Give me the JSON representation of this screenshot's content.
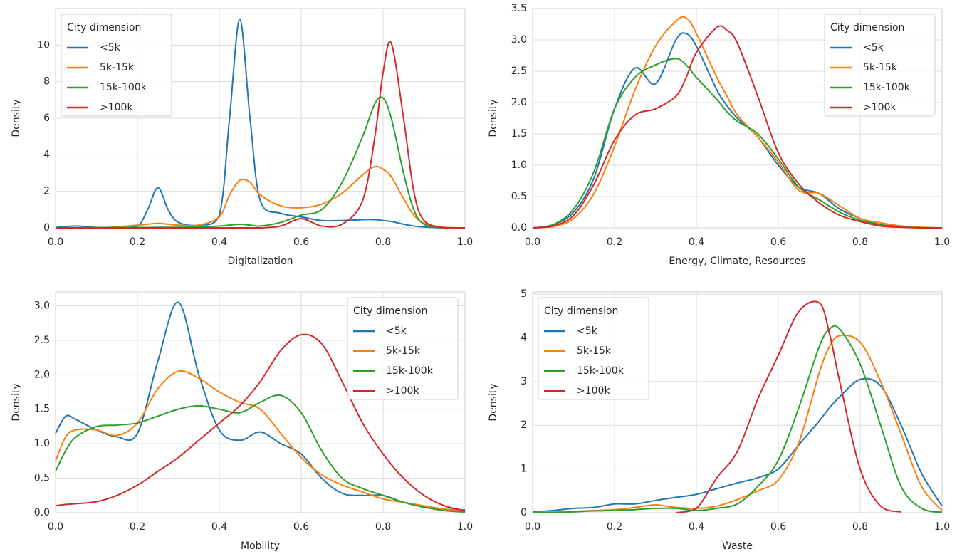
{
  "chart_data": [
    {
      "type": "line",
      "xlabel": "Digitalization",
      "ylabel": "Density",
      "x": [
        0,
        0.05,
        0.1,
        0.15,
        0.2,
        0.225,
        0.25,
        0.275,
        0.3,
        0.35,
        0.4,
        0.425,
        0.45,
        0.475,
        0.5,
        0.55,
        0.6,
        0.65,
        0.7,
        0.75,
        0.78,
        0.8,
        0.82,
        0.85,
        0.875,
        0.9,
        0.95,
        1.0
      ],
      "series": [
        {
          "name": "<5k",
          "color": "#1f77b4",
          "values": [
            0.02,
            0.1,
            0.02,
            0,
            0.1,
            1.0,
            2.2,
            1.0,
            0.3,
            0.15,
            0.7,
            6,
            11.4,
            6,
            1.5,
            0.8,
            0.6,
            0.4,
            0.4,
            0.45,
            0.45,
            0.4,
            0.35,
            0.2,
            0.1,
            0.05,
            0,
            0
          ]
        },
        {
          "name": "5k-15k",
          "color": "#ff7f0e",
          "values": [
            0,
            0,
            0,
            0.05,
            0.15,
            0.2,
            0.25,
            0.2,
            0.15,
            0.15,
            0.6,
            1.8,
            2.6,
            2.5,
            1.8,
            1.2,
            1.1,
            1.3,
            1.9,
            2.9,
            3.35,
            3.2,
            2.8,
            1.6,
            0.7,
            0.25,
            0.03,
            0
          ]
        },
        {
          "name": "15k-100k",
          "color": "#2ca02c",
          "values": [
            0,
            0,
            0.02,
            0.02,
            0.02,
            0.02,
            0.03,
            0.03,
            0.03,
            0.05,
            0.1,
            0.15,
            0.2,
            0.15,
            0.1,
            0.3,
            0.7,
            1.0,
            2.5,
            5.0,
            6.8,
            7.1,
            6.0,
            3.0,
            1.0,
            0.2,
            0,
            0
          ]
        },
        {
          "name": ">100k",
          "color": "#d62728",
          "values": [
            0,
            0,
            0,
            0,
            0,
            0,
            0,
            0,
            0,
            0,
            0,
            0,
            0,
            0,
            0,
            0.1,
            0.5,
            0.1,
            0.2,
            1.5,
            5,
            8.5,
            10.1,
            6,
            2,
            0.4,
            0,
            0
          ]
        }
      ],
      "xlim": [
        0,
        1
      ],
      "ylim": [
        0,
        12
      ],
      "xticks": [
        {
          "value": 0,
          "label": "0.0"
        },
        {
          "value": 0.2,
          "label": "0.2"
        },
        {
          "value": 0.4,
          "label": "0.4"
        },
        {
          "value": 0.6,
          "label": "0.6"
        },
        {
          "value": 0.8,
          "label": "0.8"
        },
        {
          "value": 1,
          "label": "1.0"
        }
      ],
      "yticks": [
        0,
        2,
        4,
        6,
        8,
        10
      ],
      "grid": true,
      "legend": {
        "title": "City dimension",
        "loc": "upper left"
      }
    },
    {
      "type": "line",
      "xlabel": "Energy, Climate, Resources",
      "ylabel": "Density",
      "x": [
        0,
        0.05,
        0.1,
        0.15,
        0.2,
        0.25,
        0.3,
        0.35,
        0.375,
        0.4,
        0.45,
        0.475,
        0.5,
        0.55,
        0.6,
        0.65,
        0.7,
        0.75,
        0.8,
        0.85,
        0.9,
        0.95,
        1.0
      ],
      "series": [
        {
          "name": "<5k",
          "color": "#1f77b4",
          "values": [
            0,
            0.05,
            0.25,
            0.8,
            1.9,
            2.55,
            2.3,
            3.0,
            3.1,
            2.9,
            2.2,
            1.95,
            1.75,
            1.45,
            1.0,
            0.65,
            0.55,
            0.3,
            0.15,
            0.05,
            0.02,
            0,
            0
          ]
        },
        {
          "name": "5k-15k",
          "color": "#ff7f0e",
          "values": [
            0,
            0.02,
            0.15,
            0.55,
            1.3,
            2.2,
            2.9,
            3.3,
            3.35,
            3.1,
            2.4,
            2.1,
            1.8,
            1.45,
            1.05,
            0.6,
            0.55,
            0.35,
            0.15,
            0.08,
            0.03,
            0.01,
            0
          ]
        },
        {
          "name": "15k-100k",
          "color": "#2ca02c",
          "values": [
            0,
            0.05,
            0.3,
            0.9,
            1.9,
            2.4,
            2.6,
            2.7,
            2.6,
            2.4,
            2.05,
            1.85,
            1.7,
            1.5,
            1.1,
            0.65,
            0.45,
            0.25,
            0.12,
            0.05,
            0.02,
            0,
            0
          ]
        },
        {
          "name": ">100k",
          "color": "#d62728",
          "values": [
            0,
            0.03,
            0.2,
            0.7,
            1.4,
            1.8,
            1.9,
            2.1,
            2.4,
            2.8,
            3.2,
            3.15,
            2.95,
            2.1,
            1.2,
            0.7,
            0.4,
            0.2,
            0.1,
            0.03,
            0.01,
            0,
            0
          ]
        }
      ],
      "xlim": [
        0,
        1
      ],
      "ylim": [
        0,
        3.5
      ],
      "xticks": [
        {
          "value": 0,
          "label": "0.0"
        },
        {
          "value": 0.2,
          "label": "0.2"
        },
        {
          "value": 0.4,
          "label": "0.4"
        },
        {
          "value": 0.6,
          "label": "0.6"
        },
        {
          "value": 0.8,
          "label": "0.8"
        },
        {
          "value": 1,
          "label": "1.0"
        }
      ],
      "yticks": [
        {
          "value": 0,
          "label": "0.0"
        },
        0.5,
        {
          "value": 1,
          "label": "1.0"
        },
        1.5,
        {
          "value": 2,
          "label": "2.0"
        },
        2.5,
        {
          "value": 3,
          "label": "3.0"
        },
        3.5
      ],
      "grid": true,
      "legend": {
        "title": "City dimension",
        "loc": "upper right"
      }
    },
    {
      "type": "line",
      "xlabel": "Mobility",
      "ylabel": "Density",
      "x": [
        0,
        0.025,
        0.05,
        0.1,
        0.15,
        0.2,
        0.25,
        0.3,
        0.35,
        0.4,
        0.45,
        0.5,
        0.55,
        0.6,
        0.65,
        0.7,
        0.75,
        0.8,
        0.85,
        0.9,
        0.95,
        1.0
      ],
      "series": [
        {
          "name": "<5k",
          "color": "#1f77b4",
          "values": [
            1.15,
            1.4,
            1.35,
            1.2,
            1.1,
            1.15,
            2.2,
            3.05,
            2.0,
            1.2,
            1.05,
            1.17,
            1.0,
            0.85,
            0.5,
            0.28,
            0.25,
            0.25,
            0.15,
            0.08,
            0.05,
            0.04
          ]
        },
        {
          "name": "5k-15k",
          "color": "#ff7f0e",
          "values": [
            0.75,
            1.1,
            1.2,
            1.2,
            1.12,
            1.3,
            1.8,
            2.05,
            1.95,
            1.75,
            1.6,
            1.5,
            1.15,
            0.8,
            0.55,
            0.4,
            0.3,
            0.2,
            0.15,
            0.1,
            0.05,
            0.02
          ]
        },
        {
          "name": "15k-100k",
          "color": "#2ca02c",
          "values": [
            0.6,
            0.9,
            1.1,
            1.25,
            1.27,
            1.3,
            1.4,
            1.5,
            1.55,
            1.5,
            1.45,
            1.6,
            1.7,
            1.45,
            0.9,
            0.5,
            0.35,
            0.25,
            0.15,
            0.08,
            0.03,
            0.01
          ]
        },
        {
          "name": ">100k",
          "color": "#d62728",
          "values": [
            0.1,
            0.12,
            0.13,
            0.16,
            0.25,
            0.4,
            0.6,
            0.8,
            1.05,
            1.3,
            1.55,
            1.9,
            2.35,
            2.58,
            2.45,
            1.9,
            1.3,
            0.85,
            0.5,
            0.25,
            0.1,
            0.03
          ]
        }
      ],
      "xlim": [
        0,
        1
      ],
      "ylim": [
        0,
        3.2
      ],
      "xticks": [
        {
          "value": 0,
          "label": "0.0"
        },
        {
          "value": 0.2,
          "label": "0.2"
        },
        {
          "value": 0.4,
          "label": "0.4"
        },
        {
          "value": 0.6,
          "label": "0.6"
        },
        {
          "value": 0.8,
          "label": "0.8"
        },
        {
          "value": 1,
          "label": "1.0"
        }
      ],
      "yticks": [
        {
          "value": 0,
          "label": "0.0"
        },
        0.5,
        {
          "value": 1,
          "label": "1.0"
        },
        1.5,
        {
          "value": 2,
          "label": "2.0"
        },
        2.5,
        {
          "value": 3,
          "label": "3.0"
        }
      ],
      "grid": true,
      "legend": {
        "title": "City dimension",
        "loc": "upper right"
      }
    },
    {
      "type": "line",
      "xlabel": "Waste",
      "ylabel": "Density",
      "x": [
        0,
        0.05,
        0.1,
        0.15,
        0.2,
        0.25,
        0.3,
        0.35,
        0.4,
        0.45,
        0.5,
        0.55,
        0.6,
        0.65,
        0.7,
        0.725,
        0.75,
        0.8,
        0.85,
        0.9,
        0.95,
        1.0
      ],
      "series": [
        {
          "name": "<5k",
          "color": "#1f77b4",
          "values": [
            0.02,
            0.05,
            0.1,
            0.12,
            0.2,
            0.2,
            0.28,
            0.35,
            0.42,
            0.55,
            0.68,
            0.8,
            1.0,
            1.55,
            2.1,
            2.4,
            2.65,
            3.05,
            2.9,
            2.0,
            0.9,
            0.15
          ]
        },
        {
          "name": "5k-15k",
          "color": "#ff7f0e",
          "values": [
            0,
            0.02,
            0.03,
            0.05,
            0.07,
            0.12,
            0.18,
            0.12,
            0.1,
            0.15,
            0.3,
            0.5,
            0.75,
            1.6,
            3.2,
            3.8,
            4.05,
            3.9,
            3.0,
            1.8,
            0.6,
            0.05
          ]
        },
        {
          "name": "15k-100k",
          "color": "#2ca02c",
          "values": [
            0,
            0,
            0.02,
            0.04,
            0.05,
            0.07,
            0.1,
            0.1,
            0.05,
            0.1,
            0.2,
            0.6,
            1.2,
            2.4,
            3.8,
            4.2,
            4.2,
            3.4,
            2.0,
            0.6,
            0.1,
            0.01
          ]
        },
        {
          "name": ">100k",
          "color": "#d62728",
          "values": [
            null,
            null,
            null,
            null,
            null,
            null,
            null,
            0,
            0.1,
            0.8,
            1.4,
            2.6,
            3.6,
            4.6,
            4.8,
            4.1,
            3.0,
            1.0,
            0.15,
            0.02,
            null,
            null
          ]
        }
      ],
      "xlim": [
        0,
        1
      ],
      "ylim": [
        0,
        5.05
      ],
      "xticks": [
        {
          "value": 0,
          "label": "0.0"
        },
        {
          "value": 0.2,
          "label": "0.2"
        },
        {
          "value": 0.4,
          "label": "0.4"
        },
        {
          "value": 0.6,
          "label": "0.6"
        },
        {
          "value": 0.8,
          "label": "0.8"
        },
        {
          "value": 1,
          "label": "1.0"
        }
      ],
      "yticks": [
        0,
        1,
        2,
        3,
        4,
        5
      ],
      "grid": true,
      "legend": {
        "title": "City dimension",
        "loc": "upper left"
      }
    }
  ]
}
